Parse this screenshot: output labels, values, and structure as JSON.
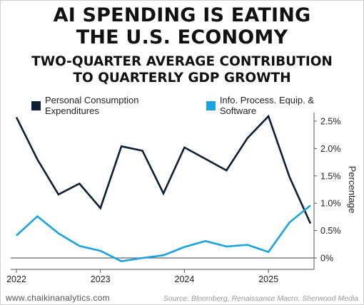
{
  "title_line1": "AI SPENDING IS EATING",
  "title_line2": "THE U.S. ECONOMY",
  "subtitle_line1": "TWO-QUARTER AVERAGE CONTRIBUTION",
  "subtitle_line2": "TO QUARTERLY GDP GROWTH",
  "footer": {
    "site": "www.chaikinanalytics.com",
    "source": "Source: Bloomberg, Renaissance Macro, Sherwood Media"
  },
  "chart_data": {
    "type": "line",
    "ylabel": "Percentage",
    "ylim": [
      -0.1,
      2.6
    ],
    "yticks": [
      0,
      0.5,
      1.0,
      1.5,
      2.0,
      2.5
    ],
    "ytick_labels": [
      "0%",
      "0.5%",
      "1.0%",
      "1.5%",
      "2.0%",
      "2.5%"
    ],
    "xlim": [
      2022.0,
      2025.5
    ],
    "xticks": [
      2022,
      2023,
      2024,
      2025
    ],
    "xtick_labels": [
      "2022",
      "2023",
      "2024",
      "2025"
    ],
    "grid": false,
    "legend": "top",
    "x": [
      2022.0,
      2022.25,
      2022.5,
      2022.75,
      2023.0,
      2023.25,
      2023.5,
      2023.75,
      2024.0,
      2024.25,
      2024.5,
      2024.75,
      2025.0,
      2025.25,
      2025.5
    ],
    "series": [
      {
        "name": "Personal Consumption Expenditures",
        "color": "#0e1e33",
        "values": [
          2.57,
          1.8,
          1.16,
          1.36,
          0.91,
          2.04,
          1.96,
          1.18,
          2.02,
          1.81,
          1.6,
          2.19,
          2.59,
          1.48,
          0.63
        ]
      },
      {
        "name": "Info. Process. Equip. & Software",
        "color": "#1aa3dd",
        "values": [
          0.41,
          0.76,
          0.45,
          0.22,
          0.13,
          -0.06,
          0.0,
          0.05,
          0.2,
          0.31,
          0.21,
          0.24,
          0.11,
          0.65,
          0.96
        ]
      }
    ]
  }
}
